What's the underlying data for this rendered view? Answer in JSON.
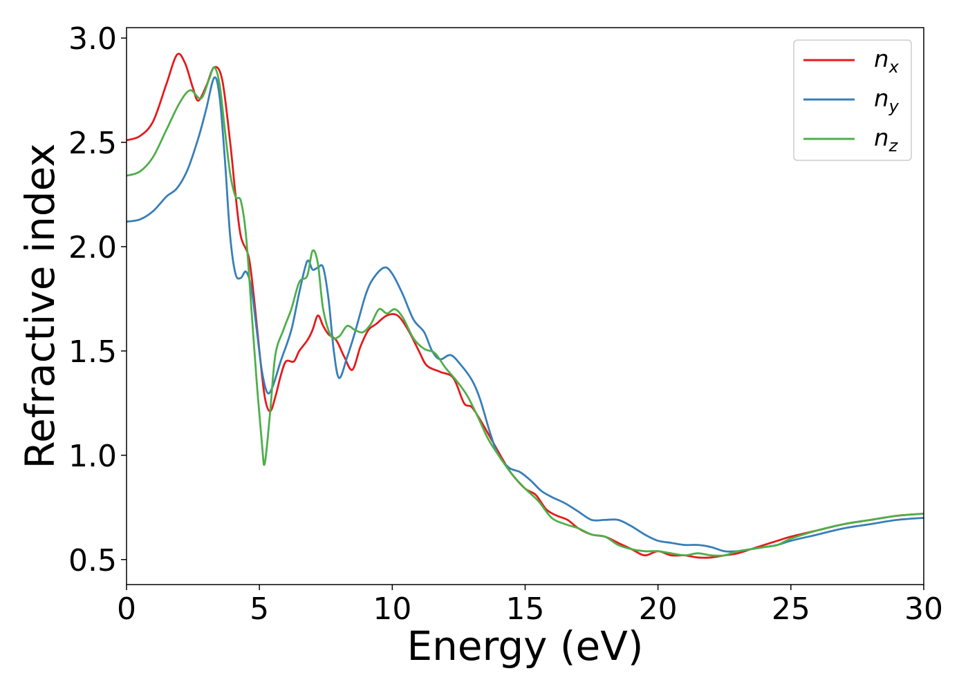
{
  "chart_data": {
    "type": "line",
    "xlabel": "Energy (eV)",
    "ylabel": "Refractive index",
    "xlim": [
      0,
      30
    ],
    "ylim": [
      0.38,
      3.05
    ],
    "x_ticks": [
      0,
      5,
      10,
      15,
      20,
      25,
      30
    ],
    "x_tick_labels": [
      "0",
      "5",
      "10",
      "15",
      "20",
      "25",
      "30"
    ],
    "y_ticks": [
      0.5,
      1.0,
      1.5,
      2.0,
      2.5,
      3.0
    ],
    "y_tick_labels": [
      "0.5",
      "1.0",
      "1.5",
      "2.0",
      "2.5",
      "3.0"
    ],
    "grid": false,
    "legend_position": "top-right",
    "series": [
      {
        "name": "n_x",
        "label_base": "n",
        "label_sub": "x",
        "color": "#e41a1c",
        "points": [
          [
            0,
            2.51
          ],
          [
            0.5,
            2.53
          ],
          [
            1.0,
            2.6
          ],
          [
            1.5,
            2.78
          ],
          [
            1.9,
            2.92
          ],
          [
            2.2,
            2.88
          ],
          [
            2.5,
            2.76
          ],
          [
            2.7,
            2.7
          ],
          [
            3.0,
            2.77
          ],
          [
            3.3,
            2.86
          ],
          [
            3.6,
            2.8
          ],
          [
            3.9,
            2.5
          ],
          [
            4.1,
            2.25
          ],
          [
            4.3,
            2.05
          ],
          [
            4.6,
            1.95
          ],
          [
            4.8,
            1.75
          ],
          [
            5.0,
            1.5
          ],
          [
            5.2,
            1.28
          ],
          [
            5.4,
            1.21
          ],
          [
            5.6,
            1.28
          ],
          [
            5.8,
            1.38
          ],
          [
            6.0,
            1.45
          ],
          [
            6.3,
            1.45
          ],
          [
            6.5,
            1.5
          ],
          [
            6.8,
            1.55
          ],
          [
            7.0,
            1.6
          ],
          [
            7.2,
            1.67
          ],
          [
            7.4,
            1.62
          ],
          [
            7.6,
            1.58
          ],
          [
            7.9,
            1.55
          ],
          [
            8.2,
            1.47
          ],
          [
            8.5,
            1.41
          ],
          [
            8.8,
            1.52
          ],
          [
            9.1,
            1.6
          ],
          [
            9.4,
            1.63
          ],
          [
            9.8,
            1.67
          ],
          [
            10.2,
            1.67
          ],
          [
            10.6,
            1.6
          ],
          [
            11.0,
            1.5
          ],
          [
            11.3,
            1.43
          ],
          [
            11.8,
            1.4
          ],
          [
            12.3,
            1.37
          ],
          [
            12.7,
            1.25
          ],
          [
            13.0,
            1.23
          ],
          [
            13.4,
            1.15
          ],
          [
            13.8,
            1.06
          ],
          [
            14.2,
            0.97
          ],
          [
            14.5,
            0.91
          ],
          [
            15.0,
            0.84
          ],
          [
            15.4,
            0.81
          ],
          [
            15.8,
            0.74
          ],
          [
            16.2,
            0.71
          ],
          [
            16.6,
            0.69
          ],
          [
            17.0,
            0.65
          ],
          [
            17.5,
            0.62
          ],
          [
            18.0,
            0.61
          ],
          [
            18.5,
            0.58
          ],
          [
            19.0,
            0.55
          ],
          [
            19.5,
            0.52
          ],
          [
            20.0,
            0.54
          ],
          [
            20.5,
            0.52
          ],
          [
            21.0,
            0.52
          ],
          [
            21.5,
            0.51
          ],
          [
            22.0,
            0.51
          ],
          [
            22.5,
            0.52
          ],
          [
            23.0,
            0.53
          ],
          [
            23.5,
            0.55
          ],
          [
            24.0,
            0.57
          ],
          [
            24.5,
            0.59
          ],
          [
            25.0,
            0.61
          ],
          [
            26.0,
            0.64
          ],
          [
            27.0,
            0.67
          ],
          [
            28.0,
            0.69
          ],
          [
            29.0,
            0.71
          ],
          [
            30.0,
            0.72
          ]
        ]
      },
      {
        "name": "n_y",
        "label_base": "n",
        "label_sub": "y",
        "color": "#377eb8",
        "points": [
          [
            0,
            2.12
          ],
          [
            0.5,
            2.13
          ],
          [
            1.0,
            2.17
          ],
          [
            1.5,
            2.24
          ],
          [
            1.9,
            2.28
          ],
          [
            2.3,
            2.37
          ],
          [
            2.7,
            2.52
          ],
          [
            3.0,
            2.66
          ],
          [
            3.3,
            2.81
          ],
          [
            3.5,
            2.72
          ],
          [
            3.7,
            2.42
          ],
          [
            3.9,
            2.05
          ],
          [
            4.1,
            1.87
          ],
          [
            4.3,
            1.85
          ],
          [
            4.5,
            1.88
          ],
          [
            4.7,
            1.8
          ],
          [
            4.9,
            1.6
          ],
          [
            5.1,
            1.4
          ],
          [
            5.3,
            1.3
          ],
          [
            5.5,
            1.33
          ],
          [
            5.8,
            1.45
          ],
          [
            6.2,
            1.6
          ],
          [
            6.5,
            1.78
          ],
          [
            6.8,
            1.93
          ],
          [
            7.0,
            1.89
          ],
          [
            7.2,
            1.9
          ],
          [
            7.4,
            1.9
          ],
          [
            7.6,
            1.75
          ],
          [
            7.8,
            1.5
          ],
          [
            8.0,
            1.37
          ],
          [
            8.3,
            1.47
          ],
          [
            8.6,
            1.59
          ],
          [
            9.0,
            1.77
          ],
          [
            9.3,
            1.85
          ],
          [
            9.7,
            1.9
          ],
          [
            10.0,
            1.87
          ],
          [
            10.4,
            1.77
          ],
          [
            10.8,
            1.65
          ],
          [
            11.2,
            1.59
          ],
          [
            11.5,
            1.5
          ],
          [
            11.8,
            1.46
          ],
          [
            12.2,
            1.48
          ],
          [
            12.6,
            1.43
          ],
          [
            13.0,
            1.36
          ],
          [
            13.3,
            1.27
          ],
          [
            13.7,
            1.1
          ],
          [
            14.0,
            1.0
          ],
          [
            14.4,
            0.94
          ],
          [
            14.8,
            0.92
          ],
          [
            15.2,
            0.88
          ],
          [
            15.6,
            0.83
          ],
          [
            16.0,
            0.8
          ],
          [
            16.5,
            0.77
          ],
          [
            17.0,
            0.73
          ],
          [
            17.5,
            0.69
          ],
          [
            18.0,
            0.69
          ],
          [
            18.5,
            0.69
          ],
          [
            19.0,
            0.66
          ],
          [
            19.5,
            0.62
          ],
          [
            20.0,
            0.59
          ],
          [
            20.5,
            0.58
          ],
          [
            21.0,
            0.57
          ],
          [
            21.5,
            0.57
          ],
          [
            22.0,
            0.56
          ],
          [
            22.5,
            0.54
          ],
          [
            23.0,
            0.54
          ],
          [
            23.5,
            0.55
          ],
          [
            24.0,
            0.56
          ],
          [
            24.5,
            0.57
          ],
          [
            25.0,
            0.59
          ],
          [
            26.0,
            0.62
          ],
          [
            27.0,
            0.65
          ],
          [
            28.0,
            0.67
          ],
          [
            29.0,
            0.69
          ],
          [
            30.0,
            0.7
          ]
        ]
      },
      {
        "name": "n_z",
        "label_base": "n",
        "label_sub": "z",
        "color": "#4daf4a",
        "points": [
          [
            0,
            2.34
          ],
          [
            0.5,
            2.36
          ],
          [
            1.0,
            2.43
          ],
          [
            1.5,
            2.56
          ],
          [
            2.0,
            2.69
          ],
          [
            2.4,
            2.75
          ],
          [
            2.8,
            2.71
          ],
          [
            3.1,
            2.8
          ],
          [
            3.3,
            2.86
          ],
          [
            3.5,
            2.78
          ],
          [
            3.7,
            2.56
          ],
          [
            3.9,
            2.35
          ],
          [
            4.1,
            2.24
          ],
          [
            4.3,
            2.22
          ],
          [
            4.5,
            2.05
          ],
          [
            4.7,
            1.7
          ],
          [
            4.9,
            1.35
          ],
          [
            5.1,
            1.05
          ],
          [
            5.2,
            0.96
          ],
          [
            5.4,
            1.2
          ],
          [
            5.6,
            1.48
          ],
          [
            5.9,
            1.6
          ],
          [
            6.2,
            1.7
          ],
          [
            6.5,
            1.83
          ],
          [
            6.8,
            1.86
          ],
          [
            7.0,
            1.98
          ],
          [
            7.2,
            1.92
          ],
          [
            7.4,
            1.7
          ],
          [
            7.7,
            1.57
          ],
          [
            8.0,
            1.57
          ],
          [
            8.3,
            1.62
          ],
          [
            8.6,
            1.6
          ],
          [
            8.9,
            1.59
          ],
          [
            9.2,
            1.63
          ],
          [
            9.5,
            1.7
          ],
          [
            9.8,
            1.68
          ],
          [
            10.1,
            1.7
          ],
          [
            10.4,
            1.66
          ],
          [
            10.8,
            1.56
          ],
          [
            11.2,
            1.51
          ],
          [
            11.6,
            1.49
          ],
          [
            12.0,
            1.42
          ],
          [
            12.4,
            1.36
          ],
          [
            12.8,
            1.29
          ],
          [
            13.2,
            1.19
          ],
          [
            13.6,
            1.08
          ],
          [
            14.0,
            1.0
          ],
          [
            14.5,
            0.91
          ],
          [
            15.0,
            0.84
          ],
          [
            15.5,
            0.78
          ],
          [
            16.0,
            0.7
          ],
          [
            16.5,
            0.67
          ],
          [
            17.0,
            0.65
          ],
          [
            17.5,
            0.62
          ],
          [
            18.0,
            0.61
          ],
          [
            18.5,
            0.57
          ],
          [
            19.0,
            0.55
          ],
          [
            19.5,
            0.54
          ],
          [
            20.0,
            0.54
          ],
          [
            20.5,
            0.53
          ],
          [
            21.0,
            0.52
          ],
          [
            21.5,
            0.53
          ],
          [
            22.0,
            0.52
          ],
          [
            22.5,
            0.52
          ],
          [
            23.0,
            0.54
          ],
          [
            23.5,
            0.55
          ],
          [
            24.0,
            0.56
          ],
          [
            24.5,
            0.57
          ],
          [
            25.0,
            0.6
          ],
          [
            26.0,
            0.64
          ],
          [
            27.0,
            0.67
          ],
          [
            28.0,
            0.69
          ],
          [
            29.0,
            0.71
          ],
          [
            30.0,
            0.72
          ]
        ]
      }
    ]
  }
}
